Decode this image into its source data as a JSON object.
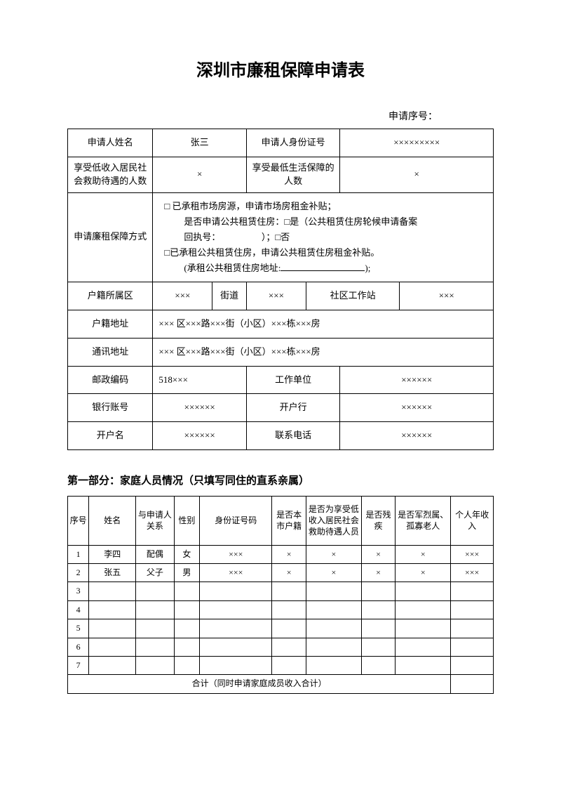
{
  "title": "深圳市廉租保障申请表",
  "seq_label": "申请序号：",
  "main": {
    "r1": {
      "l1": "申请人姓名",
      "v1": "张三",
      "l2": "申请人身份证号",
      "v2": "×××××××××"
    },
    "r2": {
      "l1": "享受低收入居民社会救助待遇的人数",
      "v1": "×",
      "l2": "享受最低生活保障的人数",
      "v2": "×"
    },
    "r3": {
      "label": "申请廉租保障方式",
      "line1a": "□ 已承租市场房源，申请市场房租金补贴；",
      "line1b": "是否申请公共租赁住房：□是（公共租赁住房轮候申请备案",
      "line1c": "回执号：　　　　　）；□否",
      "line2a": "□已承租公共租赁住房，申请公共租赁住房租金补贴。",
      "line2b_prefix": "(承租公共租赁住房地址:",
      "line2b_suffix": ");"
    },
    "r4": {
      "l1": "户籍所属区",
      "v1": "×××",
      "l2": "街道",
      "v2": "×××",
      "l3": "社区工作站",
      "v3": "×××"
    },
    "r5": {
      "l": "户籍地址",
      "v": "××× 区×××路×××街（小区）×××栋×××房"
    },
    "r6": {
      "l": "通讯地址",
      "v": "××× 区×××路×××街（小区）×××栋×××房"
    },
    "r7": {
      "l1": "邮政编码",
      "v1": "518×××",
      "l2": "工作单位",
      "v2": "××××××"
    },
    "r8": {
      "l1": "银行账号",
      "v1": "××××××",
      "l2": "开户行",
      "v2": "××××××"
    },
    "r9": {
      "l1": "开户名",
      "v1": "××××××",
      "l2": "联系电话",
      "v2": "××××××"
    }
  },
  "section1_title": "第一部分：家庭人员情况（只填写同住的直系亲属）",
  "family": {
    "headers": {
      "c0": "序号",
      "c1": "姓名",
      "c2": "与申请人关系",
      "c3": "性别",
      "c4": "身份证号码",
      "c5": "是否本市户籍",
      "c6": "是否为享受低收入居民社会救助待遇人员",
      "c7": "是否残疾",
      "c8": "是否军烈属、孤寡老人",
      "c9": "个人年收入"
    },
    "rows": [
      {
        "n": "1",
        "name": "李四",
        "rel": "配偶",
        "sex": "女",
        "id": "×××",
        "local": "×",
        "low": "×",
        "dis": "×",
        "mil": "×",
        "inc": "×××"
      },
      {
        "n": "2",
        "name": "张五",
        "rel": "父子",
        "sex": "男",
        "id": "×××",
        "local": "×",
        "low": "×",
        "dis": "×",
        "mil": "×",
        "inc": "×××"
      },
      {
        "n": "3",
        "name": "",
        "rel": "",
        "sex": "",
        "id": "",
        "local": "",
        "low": "",
        "dis": "",
        "mil": "",
        "inc": ""
      },
      {
        "n": "4",
        "name": "",
        "rel": "",
        "sex": "",
        "id": "",
        "local": "",
        "low": "",
        "dis": "",
        "mil": "",
        "inc": ""
      },
      {
        "n": "5",
        "name": "",
        "rel": "",
        "sex": "",
        "id": "",
        "local": "",
        "low": "",
        "dis": "",
        "mil": "",
        "inc": ""
      },
      {
        "n": "6",
        "name": "",
        "rel": "",
        "sex": "",
        "id": "",
        "local": "",
        "low": "",
        "dis": "",
        "mil": "",
        "inc": ""
      },
      {
        "n": "7",
        "name": "",
        "rel": "",
        "sex": "",
        "id": "",
        "local": "",
        "low": "",
        "dis": "",
        "mil": "",
        "inc": ""
      }
    ],
    "total_label": "合计（同时申请家庭成员收入合计）",
    "total_value": ""
  },
  "colors": {
    "text": "#000000",
    "bg": "#ffffff",
    "border": "#000000"
  }
}
